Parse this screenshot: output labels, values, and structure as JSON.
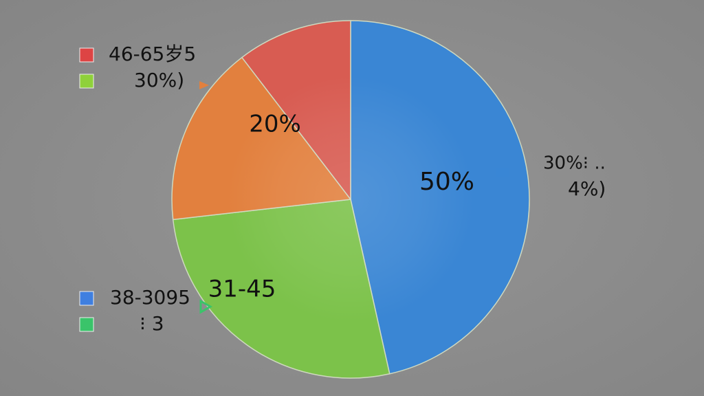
{
  "chart_data": {
    "type": "pie",
    "categories": [
      null,
      null,
      null,
      null
    ],
    "values": [
      46.5,
      26.7,
      16.4,
      10.4
    ],
    "colors": [
      "#3a86d4",
      "#7cc24a",
      "#e2803e",
      "#d85c52"
    ],
    "legend": [
      {
        "label": "46-65岁5",
        "color": "#dd4444"
      },
      {
        "label": "30%)",
        "color": "#8fd13a"
      },
      {
        "label": "38-3095",
        "color": "#3f7fe0"
      },
      {
        "label": "⁝   3",
        "color": "#3ac46a"
      }
    ],
    "annotations": [
      "20%",
      "50%",
      "31-45",
      "30%⁝ ..",
      "4%)"
    ]
  }
}
